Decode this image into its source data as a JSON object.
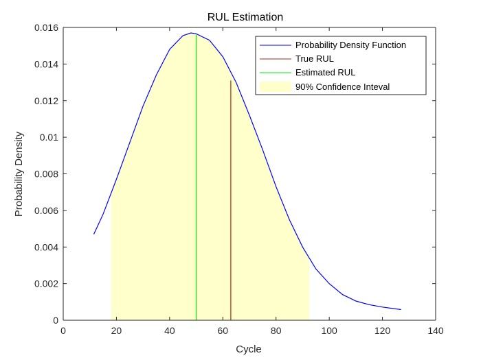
{
  "chart_data": {
    "type": "line",
    "title": "RUL Estimation",
    "xlabel": "Cycle",
    "ylabel": "Probability Density",
    "xlim": [
      0,
      140
    ],
    "ylim": [
      0,
      0.016
    ],
    "xticks": [
      0,
      20,
      40,
      60,
      80,
      100,
      120,
      140
    ],
    "yticks": [
      0,
      0.002,
      0.004,
      0.006,
      0.008,
      0.01,
      0.012,
      0.014,
      0.016
    ],
    "ytick_labels": [
      "0",
      "0.002",
      "0.004",
      "0.006",
      "0.008",
      "0.01",
      "0.012",
      "0.014",
      "0.016"
    ],
    "grid": false,
    "legend_position": "top-right",
    "series": [
      {
        "name": "Probability Density Function",
        "color": "#0000ff",
        "x": [
          11.5,
          15,
          20,
          25,
          30,
          35,
          40,
          45,
          48,
          50,
          55,
          60,
          65,
          70,
          75,
          80,
          85,
          90,
          95,
          100,
          105,
          110,
          115,
          120,
          127
        ],
        "y": [
          0.0047,
          0.0058,
          0.0077,
          0.0097,
          0.0117,
          0.0134,
          0.0148,
          0.01555,
          0.0157,
          0.01565,
          0.0153,
          0.0144,
          0.013,
          0.0112,
          0.0093,
          0.0073,
          0.0055,
          0.004,
          0.0028,
          0.002,
          0.0014,
          0.00105,
          0.00085,
          0.00072,
          0.00058
        ]
      },
      {
        "name": "True RUL",
        "color": "#a0271b",
        "x": [
          63,
          63
        ],
        "y": [
          0,
          0.0131
        ]
      },
      {
        "name": "Estimated RUL",
        "color": "#00ee00",
        "x": [
          50,
          50
        ],
        "y": [
          0,
          0.0156
        ]
      }
    ],
    "confidence_interval": {
      "name": "90% Confidence Inteval",
      "color": "#ffffcc",
      "x_start": 18,
      "x_end": 92.5
    }
  }
}
